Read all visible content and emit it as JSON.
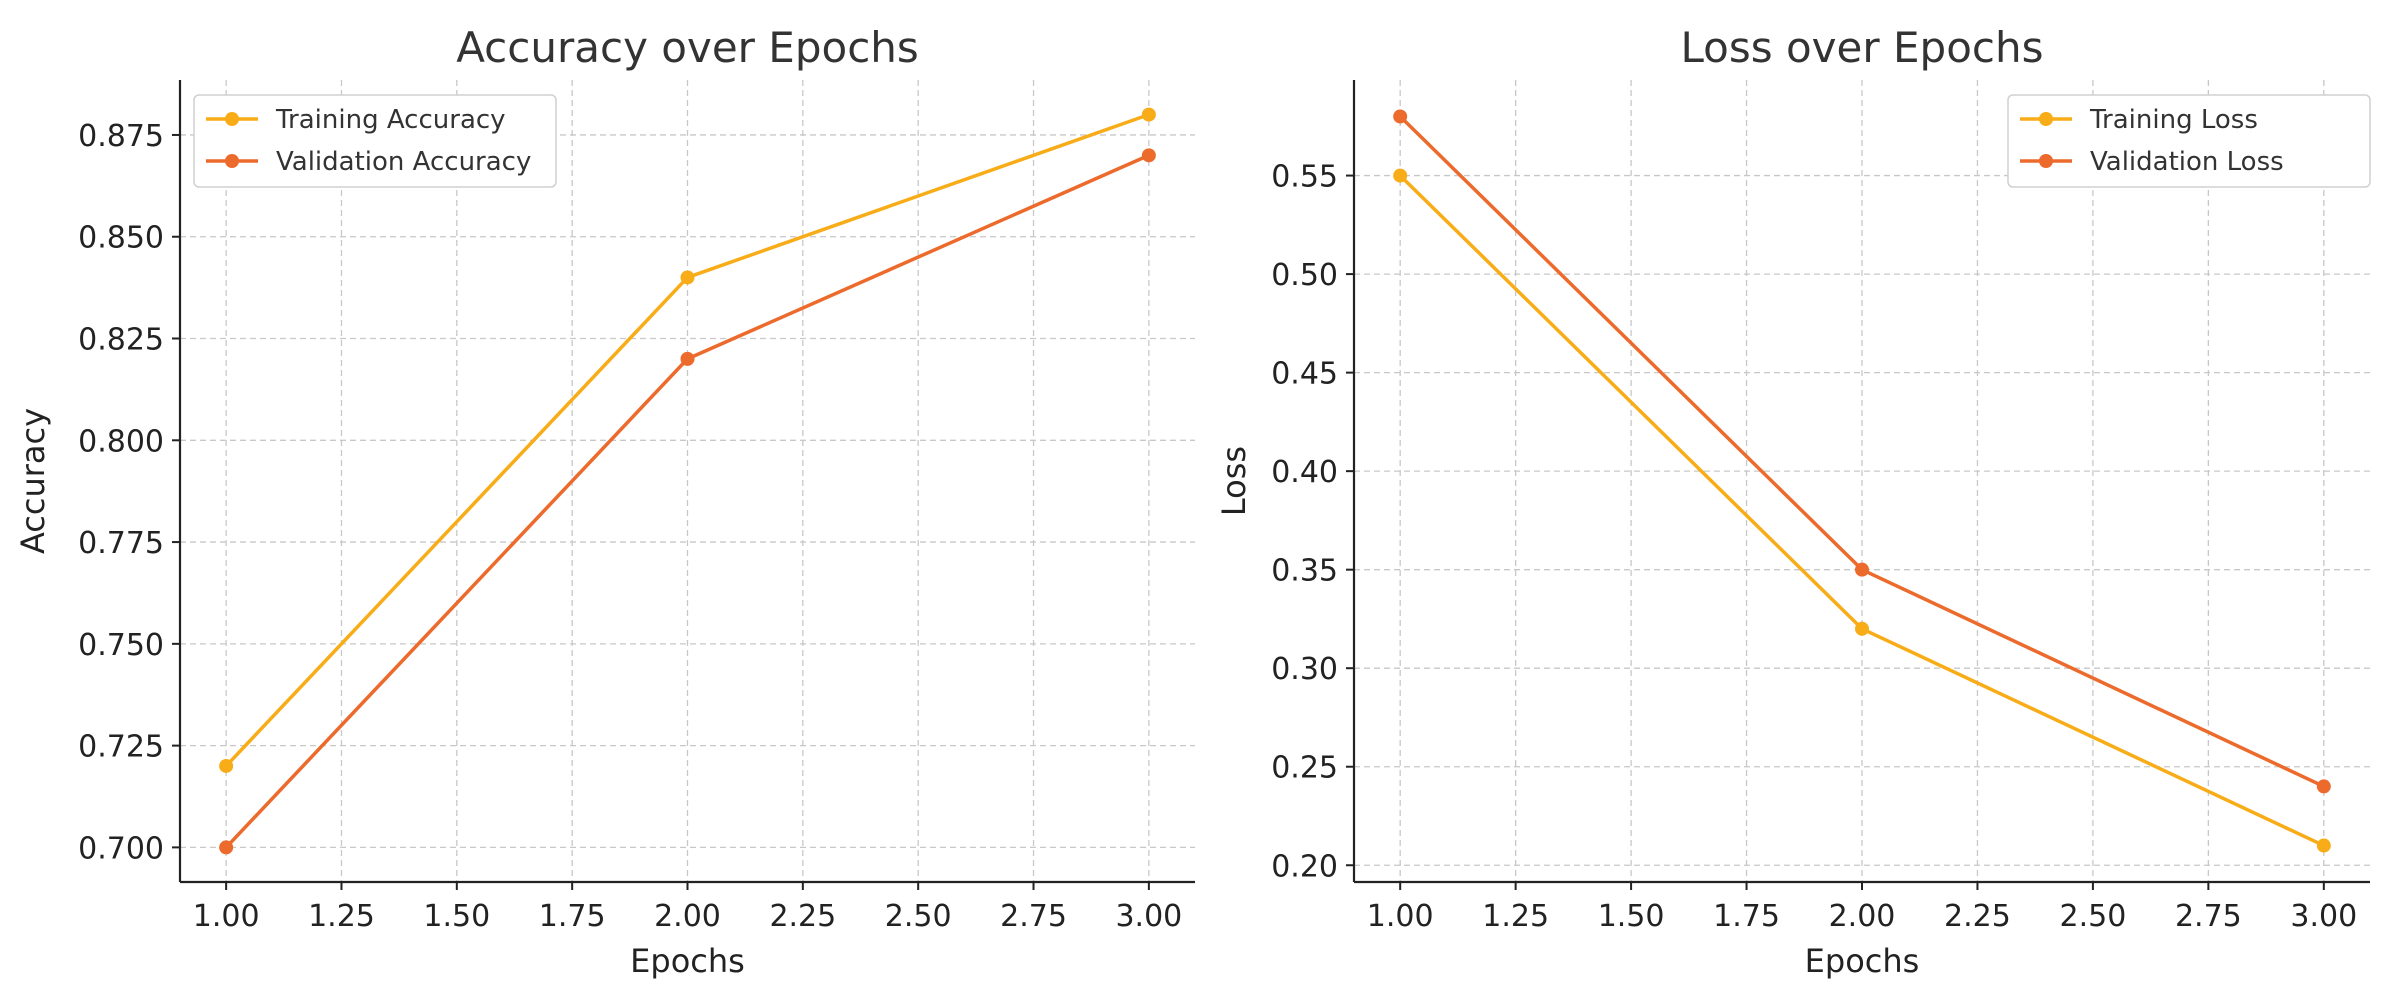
{
  "chart_data": [
    {
      "type": "line",
      "title": "Accuracy over Epochs",
      "xlabel": "Epochs",
      "ylabel": "Accuracy",
      "xlim": [
        0.9,
        3.1
      ],
      "ylim": [
        0.6915,
        0.8885
      ],
      "xticks": [
        1.0,
        1.25,
        1.5,
        1.75,
        2.0,
        2.25,
        2.5,
        2.75,
        3.0
      ],
      "xtick_labels": [
        "1.00",
        "1.25",
        "1.50",
        "1.75",
        "2.00",
        "2.25",
        "2.50",
        "2.75",
        "3.00"
      ],
      "yticks": [
        0.7,
        0.725,
        0.75,
        0.775,
        0.8,
        0.825,
        0.85,
        0.875
      ],
      "ytick_labels": [
        "0.700",
        "0.725",
        "0.750",
        "0.775",
        "0.800",
        "0.825",
        "0.850",
        "0.875"
      ],
      "grid": true,
      "legend_position": "top-left",
      "x": [
        1,
        2,
        3
      ],
      "series": [
        {
          "name": "Training Accuracy",
          "color": "#f8ac17",
          "values": [
            0.72,
            0.84,
            0.88
          ]
        },
        {
          "name": "Validation Accuracy",
          "color": "#ec6a2b",
          "values": [
            0.7,
            0.82,
            0.87
          ]
        }
      ]
    },
    {
      "type": "line",
      "title": "Loss over Epochs",
      "xlabel": "Epochs",
      "ylabel": "Loss",
      "xlim": [
        0.9,
        3.1
      ],
      "ylim": [
        0.1915,
        0.5985
      ],
      "xticks": [
        1.0,
        1.25,
        1.5,
        1.75,
        2.0,
        2.25,
        2.5,
        2.75,
        3.0
      ],
      "xtick_labels": [
        "1.00",
        "1.25",
        "1.50",
        "1.75",
        "2.00",
        "2.25",
        "2.50",
        "2.75",
        "3.00"
      ],
      "yticks": [
        0.2,
        0.25,
        0.3,
        0.35,
        0.4,
        0.45,
        0.5,
        0.55
      ],
      "ytick_labels": [
        "0.20",
        "0.25",
        "0.30",
        "0.35",
        "0.40",
        "0.45",
        "0.50",
        "0.55"
      ],
      "grid": true,
      "legend_position": "top-right",
      "x": [
        1,
        2,
        3
      ],
      "series": [
        {
          "name": "Training Loss",
          "color": "#f8ac17",
          "values": [
            0.55,
            0.32,
            0.21
          ]
        },
        {
          "name": "Validation Loss",
          "color": "#ec6a2b",
          "values": [
            0.58,
            0.35,
            0.24
          ]
        }
      ]
    }
  ]
}
